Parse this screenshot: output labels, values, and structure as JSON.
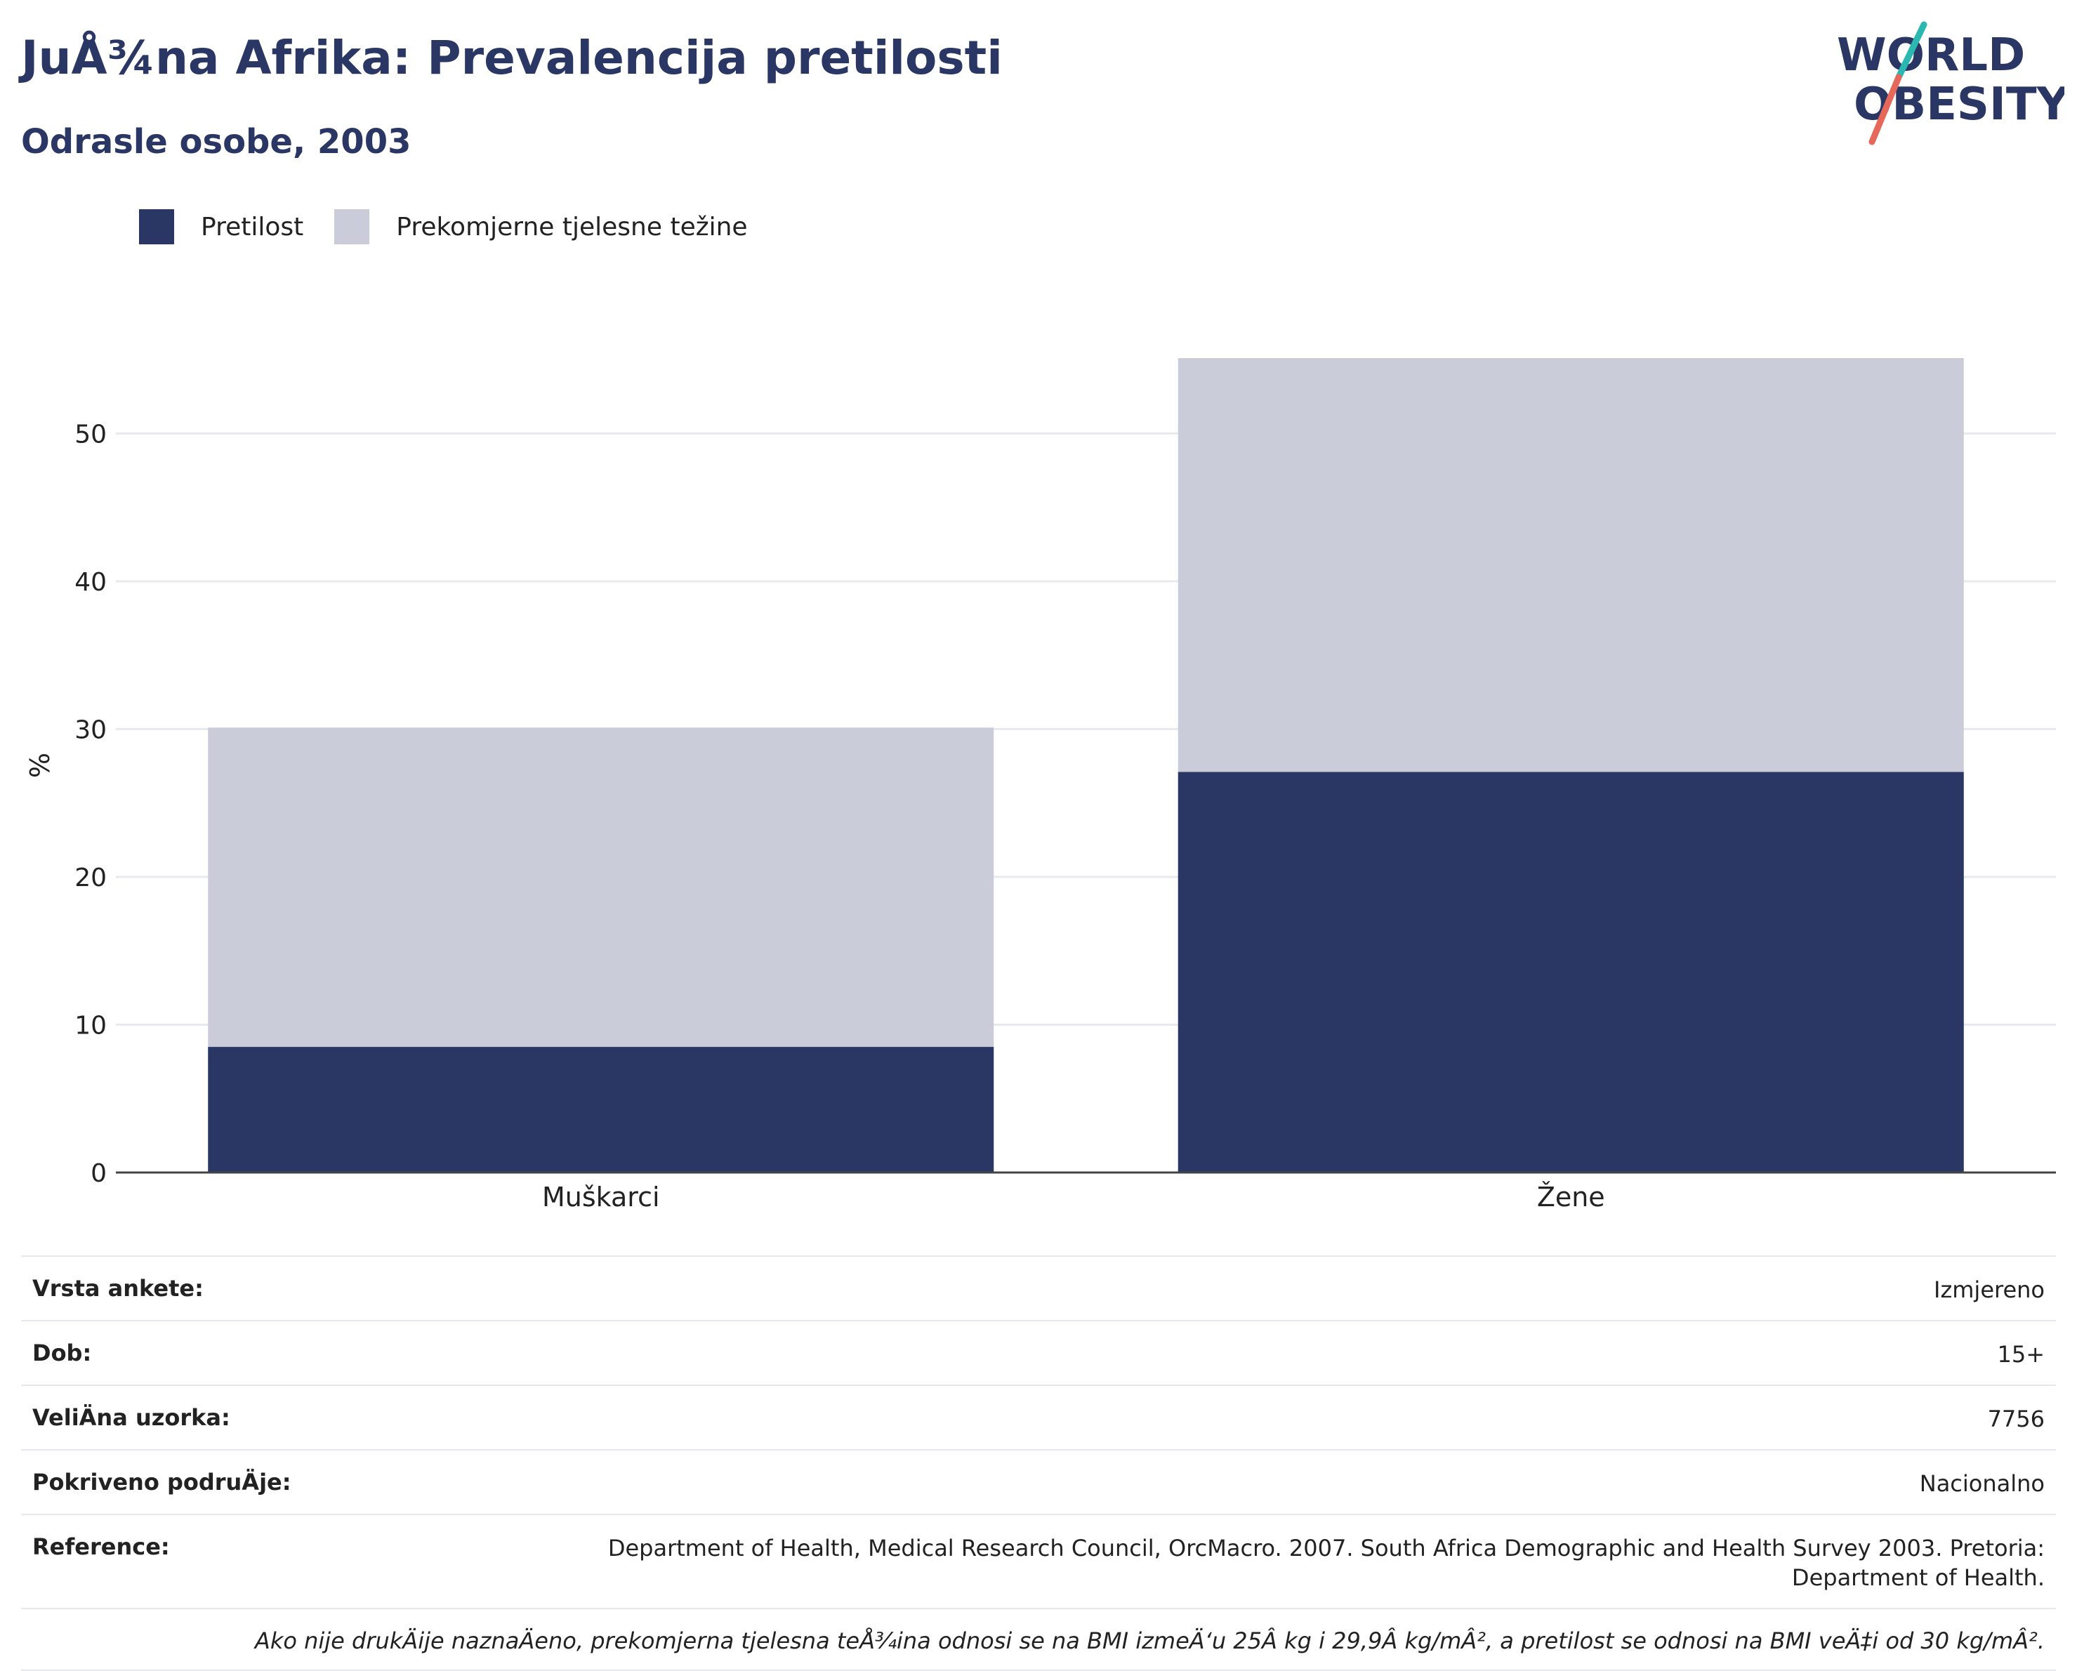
{
  "header": {
    "title": "JuÅ¾na Afrika: Prevalencija pretilosti",
    "subtitle": "Odrasle osobe, 2003"
  },
  "logo": {
    "line1": "WORLD",
    "line2": "OBESITY"
  },
  "colors": {
    "obesity": "#2a3664",
    "overweight": "#cacdd9",
    "accent_teal": "#2bb8b1",
    "accent_red": "#e5685a",
    "text_dark": "#2a3664"
  },
  "chart_data": {
    "type": "bar",
    "stacked": true,
    "categories": [
      "Muškarci",
      "Žene"
    ],
    "series": [
      {
        "name": "Pretilost",
        "values": [
          8.5,
          27.1
        ],
        "color": "#2a3664"
      },
      {
        "name": "Prekomjerne tjelesne težine",
        "values": [
          21.6,
          28.0
        ],
        "color": "#cacdd9"
      }
    ],
    "ylabel": "%",
    "ylim": [
      0,
      57
    ],
    "yticks": [
      0,
      10,
      20,
      30,
      40,
      50
    ],
    "grid": true,
    "legend": "top-left"
  },
  "info_table": [
    {
      "label": "Vrsta ankete:",
      "value": "Izmjereno"
    },
    {
      "label": "Dob:",
      "value": "15+"
    },
    {
      "label": "VeliÄna uzorka:",
      "value": "7756"
    },
    {
      "label": "Pokriveno podruÄje:",
      "value": "Nacionalno"
    },
    {
      "label": "Reference:",
      "value": "Department of Health, Medical Research Council, OrcMacro. 2007. South Africa Demographic and Health Survey 2003. Pretoria: Department of Health."
    }
  ],
  "footnote": "Ako nije drukÄije naznaÄeno, prekomjerna tjelesna teÅ¾ina odnosi se na BMI izmeÄ‘u 25Â kg i 29,9Â kg/mÂ², a pretilost se odnosi na BMI veÄ‡i od 30 kg/mÂ²."
}
